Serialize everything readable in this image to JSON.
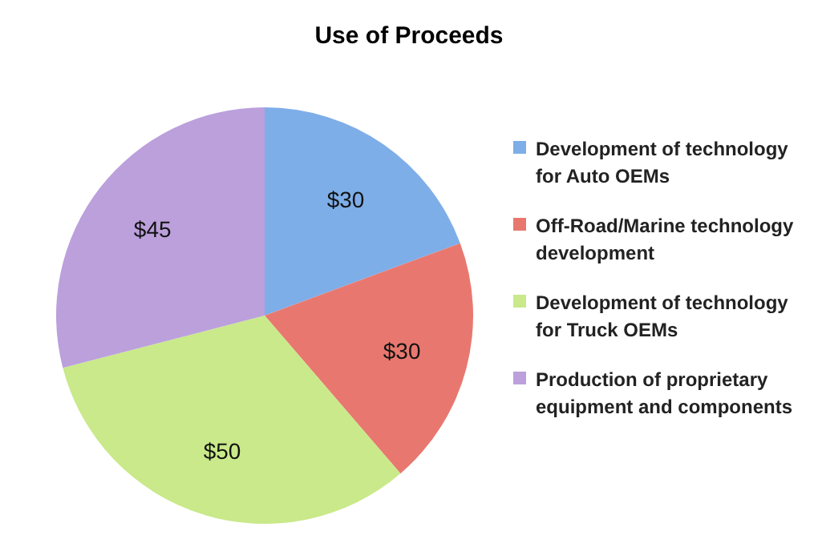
{
  "chart_data": {
    "type": "pie",
    "title": "Use of Proceeds",
    "categories": [
      "Development of technology for Auto OEMs",
      "Off-Road/Marine technology development",
      "Development of technology for Truck OEMs",
      "Production of proprietary equipment and components"
    ],
    "values": [
      30,
      30,
      50,
      45
    ],
    "value_labels": [
      "$30",
      "$30",
      "$50",
      "$45"
    ],
    "colors": [
      "#7eaee8",
      "#e8786f",
      "#c9e98a",
      "#bba0dc"
    ],
    "legend": "right"
  }
}
